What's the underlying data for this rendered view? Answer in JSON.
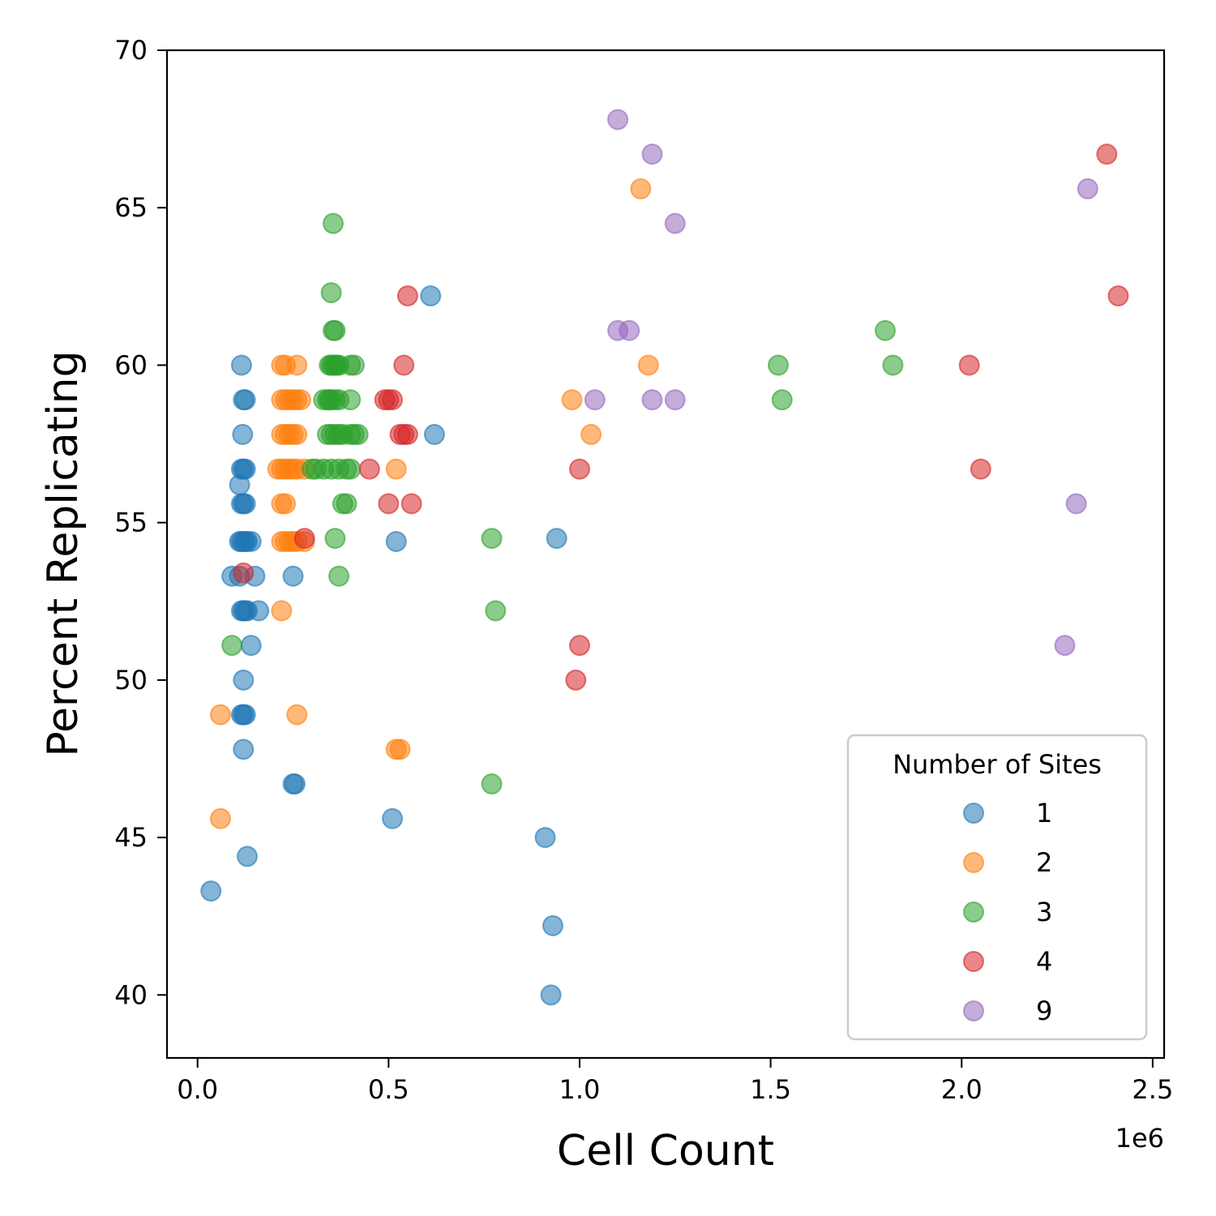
{
  "chart_data": {
    "type": "scatter",
    "xlabel": "Cell Count",
    "ylabel": "Percent Replicating",
    "x_offset_label": "1e6",
    "xlim": [
      -0.08,
      2.53
    ],
    "ylim": [
      38,
      70
    ],
    "x_ticks": [
      0.0,
      0.5,
      1.0,
      1.5,
      2.0,
      2.5
    ],
    "x_tick_labels": [
      "0.0",
      "0.5",
      "1.0",
      "1.5",
      "2.0",
      "2.5"
    ],
    "y_ticks": [
      40,
      45,
      50,
      55,
      60,
      65,
      70
    ],
    "y_tick_labels": [
      "40",
      "45",
      "50",
      "55",
      "60",
      "65",
      "70"
    ],
    "grid": false,
    "legend": {
      "title": "Number of Sites",
      "placement": "lower-right"
    },
    "series": [
      {
        "name": "1",
        "color": "#1f77b4",
        "points": [
          [
            0.115,
            60.0
          ],
          [
            0.12,
            58.9
          ],
          [
            0.125,
            58.9
          ],
          [
            0.118,
            57.8
          ],
          [
            0.115,
            56.7
          ],
          [
            0.12,
            56.7
          ],
          [
            0.125,
            56.7
          ],
          [
            0.11,
            56.2
          ],
          [
            0.115,
            55.6
          ],
          [
            0.12,
            55.6
          ],
          [
            0.125,
            55.6
          ],
          [
            0.11,
            54.4
          ],
          [
            0.115,
            54.4
          ],
          [
            0.12,
            54.4
          ],
          [
            0.125,
            54.4
          ],
          [
            0.13,
            54.4
          ],
          [
            0.14,
            54.4
          ],
          [
            0.09,
            53.3
          ],
          [
            0.11,
            53.3
          ],
          [
            0.15,
            53.3
          ],
          [
            0.115,
            52.2
          ],
          [
            0.12,
            52.2
          ],
          [
            0.125,
            52.2
          ],
          [
            0.13,
            52.2
          ],
          [
            0.16,
            52.2
          ],
          [
            0.14,
            51.1
          ],
          [
            0.12,
            50.0
          ],
          [
            0.115,
            48.9
          ],
          [
            0.12,
            48.9
          ],
          [
            0.125,
            48.9
          ],
          [
            0.12,
            47.8
          ],
          [
            0.25,
            46.7
          ],
          [
            0.255,
            46.7
          ],
          [
            0.13,
            44.4
          ],
          [
            0.035,
            43.3
          ],
          [
            0.25,
            53.3
          ],
          [
            0.52,
            54.4
          ],
          [
            0.51,
            45.6
          ],
          [
            0.61,
            62.2
          ],
          [
            0.62,
            57.8
          ],
          [
            0.94,
            54.5
          ],
          [
            0.91,
            45.0
          ],
          [
            0.93,
            42.2
          ],
          [
            0.925,
            40.0
          ]
        ]
      },
      {
        "name": "2",
        "color": "#ff7f0e",
        "points": [
          [
            0.22,
            60.0
          ],
          [
            0.23,
            60.0
          ],
          [
            0.26,
            60.0
          ],
          [
            0.22,
            58.9
          ],
          [
            0.23,
            58.9
          ],
          [
            0.24,
            58.9
          ],
          [
            0.25,
            58.9
          ],
          [
            0.26,
            58.9
          ],
          [
            0.27,
            58.9
          ],
          [
            0.22,
            57.8
          ],
          [
            0.23,
            57.8
          ],
          [
            0.24,
            57.8
          ],
          [
            0.25,
            57.8
          ],
          [
            0.26,
            57.8
          ],
          [
            0.21,
            56.7
          ],
          [
            0.22,
            56.7
          ],
          [
            0.23,
            56.7
          ],
          [
            0.24,
            56.7
          ],
          [
            0.25,
            56.7
          ],
          [
            0.26,
            56.7
          ],
          [
            0.28,
            56.7
          ],
          [
            0.22,
            55.6
          ],
          [
            0.23,
            55.6
          ],
          [
            0.22,
            54.4
          ],
          [
            0.23,
            54.4
          ],
          [
            0.24,
            54.4
          ],
          [
            0.25,
            54.4
          ],
          [
            0.26,
            54.4
          ],
          [
            0.28,
            54.4
          ],
          [
            0.22,
            52.2
          ],
          [
            0.06,
            48.9
          ],
          [
            0.26,
            48.9
          ],
          [
            0.06,
            45.6
          ],
          [
            0.52,
            56.7
          ],
          [
            0.52,
            47.8
          ],
          [
            0.53,
            47.8
          ],
          [
            1.16,
            65.6
          ],
          [
            1.18,
            60.0
          ],
          [
            0.98,
            58.9
          ],
          [
            1.03,
            57.8
          ]
        ]
      },
      {
        "name": "3",
        "color": "#2ca02c",
        "points": [
          [
            0.355,
            64.5
          ],
          [
            0.35,
            62.3
          ],
          [
            0.355,
            61.1
          ],
          [
            0.36,
            61.1
          ],
          [
            0.345,
            60.0
          ],
          [
            0.35,
            60.0
          ],
          [
            0.355,
            60.0
          ],
          [
            0.36,
            60.0
          ],
          [
            0.365,
            60.0
          ],
          [
            0.37,
            60.0
          ],
          [
            0.4,
            60.0
          ],
          [
            0.41,
            60.0
          ],
          [
            0.33,
            58.9
          ],
          [
            0.34,
            58.9
          ],
          [
            0.345,
            58.9
          ],
          [
            0.35,
            58.9
          ],
          [
            0.36,
            58.9
          ],
          [
            0.37,
            58.9
          ],
          [
            0.4,
            58.9
          ],
          [
            0.34,
            57.8
          ],
          [
            0.35,
            57.8
          ],
          [
            0.36,
            57.8
          ],
          [
            0.37,
            57.8
          ],
          [
            0.38,
            57.8
          ],
          [
            0.4,
            57.8
          ],
          [
            0.41,
            57.8
          ],
          [
            0.42,
            57.8
          ],
          [
            0.3,
            56.7
          ],
          [
            0.31,
            56.7
          ],
          [
            0.33,
            56.7
          ],
          [
            0.35,
            56.7
          ],
          [
            0.37,
            56.7
          ],
          [
            0.39,
            56.7
          ],
          [
            0.4,
            56.7
          ],
          [
            0.38,
            55.6
          ],
          [
            0.39,
            55.6
          ],
          [
            0.36,
            54.5
          ],
          [
            0.37,
            53.3
          ],
          [
            0.09,
            51.1
          ],
          [
            0.77,
            54.5
          ],
          [
            0.78,
            52.2
          ],
          [
            0.77,
            46.7
          ],
          [
            1.52,
            60.0
          ],
          [
            1.53,
            58.9
          ],
          [
            1.8,
            61.1
          ],
          [
            1.82,
            60.0
          ]
        ]
      },
      {
        "name": "4",
        "color": "#d62728",
        "points": [
          [
            0.55,
            62.2
          ],
          [
            0.54,
            60.0
          ],
          [
            0.49,
            58.9
          ],
          [
            0.5,
            58.9
          ],
          [
            0.51,
            58.9
          ],
          [
            0.53,
            57.8
          ],
          [
            0.54,
            57.8
          ],
          [
            0.55,
            57.8
          ],
          [
            0.45,
            56.7
          ],
          [
            0.5,
            55.6
          ],
          [
            0.56,
            55.6
          ],
          [
            0.12,
            53.4
          ],
          [
            0.28,
            54.5
          ],
          [
            1.0,
            56.7
          ],
          [
            1.0,
            51.1
          ],
          [
            0.99,
            50.0
          ],
          [
            2.02,
            60.0
          ],
          [
            2.05,
            56.7
          ],
          [
            2.38,
            66.7
          ],
          [
            2.41,
            62.2
          ]
        ]
      },
      {
        "name": "9",
        "color": "#9467bd",
        "points": [
          [
            1.1,
            67.8
          ],
          [
            1.19,
            66.7
          ],
          [
            1.25,
            64.5
          ],
          [
            1.1,
            61.1
          ],
          [
            1.13,
            61.1
          ],
          [
            1.04,
            58.9
          ],
          [
            1.19,
            58.9
          ],
          [
            1.25,
            58.9
          ],
          [
            2.33,
            65.6
          ],
          [
            2.3,
            55.6
          ],
          [
            2.27,
            51.1
          ]
        ]
      }
    ]
  }
}
